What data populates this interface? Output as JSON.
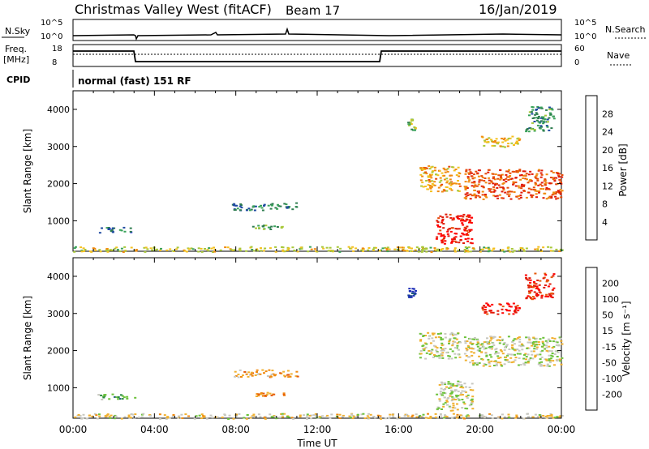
{
  "header": {
    "title": "Christmas Valley West (fitACF)",
    "beam": "Beam 17",
    "date": "16/Jan/2019"
  },
  "status_panels": {
    "nsky": {
      "label": "N.Sky",
      "ticks": [
        "10^5",
        "10^0"
      ]
    },
    "nsearch": {
      "label": "N.Search",
      "ticks": [
        "10^5",
        "10^0"
      ]
    },
    "freq": {
      "label_top": "Freq.",
      "label_bottom": "[MHz]",
      "ticks": [
        "18",
        "8"
      ]
    },
    "nave": {
      "label": "Nave",
      "ticks": [
        "60",
        "0"
      ]
    },
    "cpid": {
      "label": "CPID",
      "value": "normal (fast) 151 RF"
    }
  },
  "colors": {
    "power_scale": [
      "#0a14e6",
      "#1f4aa0",
      "#2e7d4f",
      "#3aa35a",
      "#a8c83a",
      "#f4c020",
      "#f08a10",
      "#e64a08",
      "#e01a08",
      "#ff0000"
    ],
    "velocity_scale": [
      "#1e2fb8",
      "#1f5a7a",
      "#2c8b45",
      "#6cc23a",
      "#c8c8c0",
      "#f0b030",
      "#f08a10",
      "#e65a08",
      "#e01a08",
      "#ff0000"
    ]
  },
  "chart_data": [
    {
      "type": "heatmap",
      "name": "power",
      "xlabel": "",
      "ylabel": "Slant Range [km]",
      "yticks": [
        1000,
        2000,
        3000,
        4000
      ],
      "ylim": [
        180,
        4500
      ],
      "xlim": [
        0,
        24
      ],
      "colorbar_label": "Power [dB]",
      "colorbar_ticks": [
        "28",
        "24",
        "20",
        "16",
        "12",
        "8",
        "4"
      ],
      "echo_regions": [
        {
          "t0": 1.2,
          "t1": 3.0,
          "r0": 700,
          "r1": 850,
          "level": 0.2
        },
        {
          "t0": 7.8,
          "t1": 11.0,
          "r0": 1300,
          "r1": 1500,
          "level": 0.25
        },
        {
          "t0": 8.8,
          "t1": 10.4,
          "r0": 780,
          "r1": 900,
          "level": 0.35
        },
        {
          "t0": 16.4,
          "t1": 16.8,
          "r0": 3450,
          "r1": 3750,
          "level": 0.4
        },
        {
          "t0": 17.0,
          "t1": 19.0,
          "r0": 1800,
          "r1": 2500,
          "level": 0.6
        },
        {
          "t0": 17.8,
          "t1": 19.6,
          "r0": 400,
          "r1": 1200,
          "level": 0.9
        },
        {
          "t0": 19.2,
          "t1": 24.0,
          "r0": 1600,
          "r1": 2400,
          "level": 0.75
        },
        {
          "t0": 20.0,
          "t1": 22.0,
          "r0": 3000,
          "r1": 3300,
          "level": 0.55
        },
        {
          "t0": 22.2,
          "t1": 23.6,
          "r0": 3400,
          "r1": 4100,
          "level": 0.3
        },
        {
          "t0": 0.0,
          "t1": 24.0,
          "r0": 180,
          "r1": 320,
          "level": 0.5
        }
      ]
    },
    {
      "type": "heatmap",
      "name": "velocity",
      "xlabel": "Time UT",
      "ylabel": "Slant Range [km]",
      "xticks": [
        "00:00",
        "04:00",
        "08:00",
        "12:00",
        "16:00",
        "20:00",
        "00:00"
      ],
      "yticks": [
        1000,
        2000,
        3000,
        4000
      ],
      "ylim": [
        180,
        4500
      ],
      "xlim": [
        0,
        24
      ],
      "colorbar_label": "Velocity [m s⁻¹]",
      "colorbar_ticks": [
        "200",
        "100",
        "50",
        "15",
        "-15",
        "-50",
        "-100",
        "-200"
      ],
      "echo_regions": [
        {
          "t0": 1.2,
          "t1": 3.0,
          "r0": 700,
          "r1": 850,
          "level": 0.3
        },
        {
          "t0": 7.8,
          "t1": 11.0,
          "r0": 1300,
          "r1": 1500,
          "level": 0.6
        },
        {
          "t0": 8.8,
          "t1": 10.4,
          "r0": 780,
          "r1": 900,
          "level": 0.65
        },
        {
          "t0": 16.4,
          "t1": 16.8,
          "r0": 3450,
          "r1": 3750,
          "level": 0.05
        },
        {
          "t0": 17.0,
          "t1": 19.0,
          "r0": 1800,
          "r1": 2500,
          "level": 0.45
        },
        {
          "t0": 17.8,
          "t1": 19.6,
          "r0": 400,
          "r1": 1200,
          "level": 0.45
        },
        {
          "t0": 19.2,
          "t1": 24.0,
          "r0": 1600,
          "r1": 2400,
          "level": 0.45
        },
        {
          "t0": 20.0,
          "t1": 22.0,
          "r0": 3000,
          "r1": 3300,
          "level": 0.9
        },
        {
          "t0": 22.2,
          "t1": 23.6,
          "r0": 3400,
          "r1": 4100,
          "level": 0.85
        },
        {
          "t0": 0.0,
          "t1": 24.0,
          "r0": 180,
          "r1": 320,
          "level": 0.5
        }
      ]
    }
  ]
}
